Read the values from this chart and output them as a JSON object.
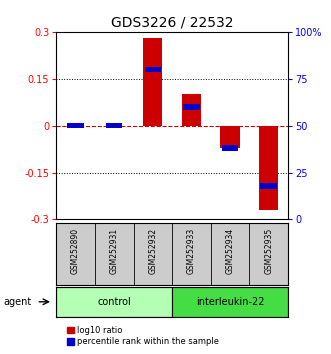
{
  "title": "GDS3226 / 22532",
  "samples": [
    "GSM252890",
    "GSM252931",
    "GSM252932",
    "GSM252933",
    "GSM252934",
    "GSM252935"
  ],
  "log10_ratio": [
    0.0,
    0.0,
    0.28,
    0.1,
    -0.07,
    -0.27
  ],
  "percentile_rank": [
    50,
    50,
    80,
    60,
    38,
    18
  ],
  "ylim_left": [
    -0.3,
    0.3
  ],
  "ylim_right": [
    0,
    100
  ],
  "yticks_left": [
    -0.3,
    -0.15,
    0.0,
    0.15,
    0.3
  ],
  "yticks_right": [
    0,
    25,
    50,
    75,
    100
  ],
  "ytick_labels_left": [
    "-0.3",
    "-0.15",
    "0",
    "0.15",
    "0.3"
  ],
  "ytick_labels_right": [
    "0",
    "25",
    "50",
    "75",
    "100%"
  ],
  "groups": [
    {
      "label": "control",
      "indices": [
        0,
        1,
        2
      ],
      "color": "#b3ffb3"
    },
    {
      "label": "interleukin-22",
      "indices": [
        3,
        4,
        5
      ],
      "color": "#44dd44"
    }
  ],
  "agent_label": "agent",
  "bar_color_red": "#cc0000",
  "bar_color_blue": "#0000cc",
  "bar_width": 0.5,
  "legend_red": "log10 ratio",
  "legend_blue": "percentile rank within the sample",
  "title_fontsize": 10,
  "tick_fontsize": 7,
  "hline_color": "#cc0000",
  "grid_color": "#000000",
  "bg_sample_row": "#cccccc"
}
